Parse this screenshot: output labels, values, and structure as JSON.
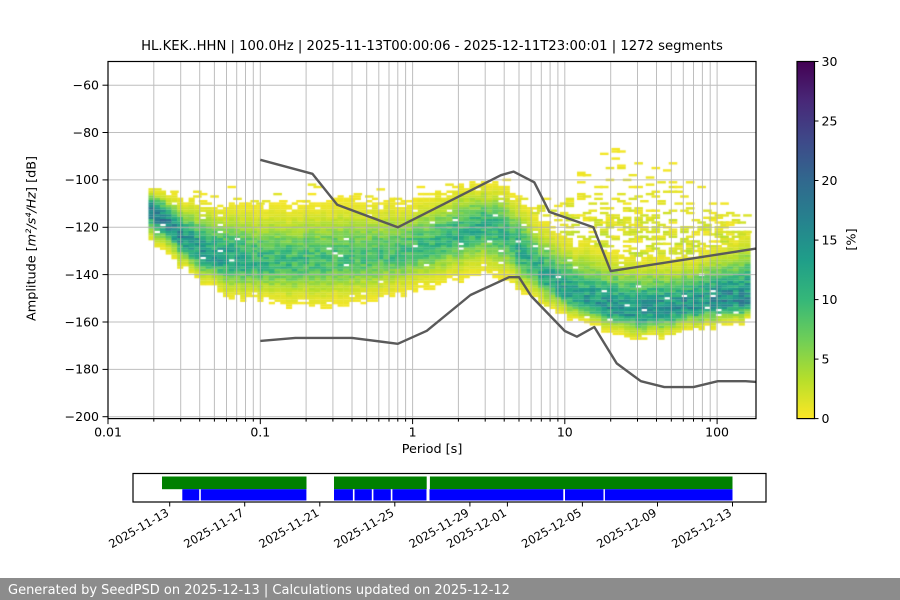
{
  "footer": {
    "text": "Generated by SeedPSD on 2025-12-13 | Calculations updated on 2025-12-12"
  },
  "colors": {
    "grid": "#b3b3b3",
    "noise_model_line": "#5a5a5a",
    "footer_background": "#8c8c8c",
    "axis": "#000000",
    "timeline_green": "#008000",
    "timeline_blue": "#0000ff"
  },
  "chart_data": {
    "type": "heatmap",
    "subtype": "ppsd-probabilistic-power-spectral-density",
    "title": "HL.KEK..HHN | 100.0Hz | 2025-11-13T00:00:06 - 2025-12-11T23:00:01 | 1272 segments",
    "header": {
      "station": "HL.KEK..HHN",
      "sampling_rate": "100.0Hz",
      "start": "2025-11-13T00:00:06",
      "end": "2025-12-11T23:00:01",
      "segments": "1272 segments"
    },
    "xlabel": "Period [s]",
    "ylabel": "Amplitude [m²/s⁴/Hz] [dB]",
    "ylabel_parts": {
      "prefix": "Amplitude [",
      "math": "m²/s⁴/Hz",
      "suffix": "] [dB]"
    },
    "xscale": "log",
    "xlim": [
      0.01,
      180
    ],
    "ylim": [
      -201,
      -50
    ],
    "grid": true,
    "x_ticks": {
      "values": [
        0.01,
        0.1,
        1,
        10,
        100
      ],
      "labels": [
        "0.01",
        "0.1",
        "1",
        "10",
        "100"
      ]
    },
    "y_ticks": {
      "values": [
        -60,
        -80,
        -100,
        -120,
        -140,
        -160,
        -180,
        -200
      ],
      "labels": [
        "−60",
        "−80",
        "−100",
        "−120",
        "−140",
        "−160",
        "−180",
        "−200"
      ]
    },
    "colorbar": {
      "label": "[%]",
      "min": 0,
      "max": 30,
      "ticks": [
        0,
        5,
        10,
        15,
        20,
        25,
        30
      ],
      "colormap": "viridis_r",
      "colors_low_to_high_pct": [
        "#fde725",
        "#b5de2b",
        "#6ece58",
        "#35b779",
        "#1f9e89",
        "#26828e",
        "#31688e",
        "#3e4989",
        "#482878",
        "#440154"
      ]
    },
    "density": {
      "description": "PPSD 2-D histogram: probability [%] of PSD amplitude vs period",
      "period_step_octaves": 0.125,
      "db_bin_width": 1,
      "period_range": [
        0.0185,
        180
      ],
      "periods": [
        0.0185,
        0.024,
        0.031,
        0.042,
        0.06,
        0.09,
        0.14,
        0.22,
        0.35,
        0.55,
        0.85,
        1.3,
        2.0,
        2.9,
        4.0,
        5.0,
        6.5,
        8.5,
        11,
        15,
        21,
        30,
        45,
        70,
        110,
        180
      ],
      "mode_db": [
        -111,
        -117,
        -125,
        -131,
        -133.5,
        -134.5,
        -134.5,
        -134,
        -133,
        -132.5,
        -131,
        -127.5,
        -122,
        -119.5,
        -122,
        -129,
        -137,
        -144,
        -149,
        -152.5,
        -154.5,
        -155.5,
        -154.5,
        -153,
        -151.5,
        -151
      ],
      "top_db": [
        -104,
        -106,
        -108,
        -110,
        -110.5,
        -111,
        -110.5,
        -109.5,
        -108,
        -108.5,
        -109,
        -106.5,
        -103,
        -101,
        -102,
        -108,
        -115,
        -121,
        -125,
        -128,
        -130.5,
        -132.5,
        -133,
        -131.5,
        -127,
        -121
      ],
      "bottom_db": [
        -124,
        -131,
        -137,
        -143,
        -148,
        -151,
        -152.5,
        -153.5,
        -152.5,
        -150.5,
        -148,
        -145.5,
        -141.5,
        -138.5,
        -141,
        -146,
        -151,
        -155,
        -158,
        -161.5,
        -164.5,
        -166.5,
        -165.5,
        -163,
        -161,
        -159
      ],
      "peak_pct": [
        19,
        17,
        15,
        14,
        13,
        11,
        10,
        9.5,
        9,
        9,
        9.5,
        10,
        11,
        11,
        11,
        11.5,
        12,
        12.5,
        13,
        14,
        15,
        15,
        15,
        15,
        15.5,
        15.5
      ]
    },
    "speckle_clouds": [
      {
        "name": "short-period-outliers",
        "p0": 0.0185,
        "p1": 1.0,
        "base": 0.18,
        "falloff": 2.0,
        "kind": "weak",
        "top": [
          [
            0.0185,
            -102
          ],
          [
            0.05,
            -104
          ],
          [
            0.1,
            -101
          ],
          [
            0.25,
            -101
          ],
          [
            0.6,
            -103
          ],
          [
            1.0,
            -101
          ]
        ]
      },
      {
        "name": "microseism-outliers",
        "p0": 1.0,
        "p1": 5.5,
        "base": 0.15,
        "falloff": 2.0,
        "kind": "weak",
        "top": [
          [
            1.0,
            -101
          ],
          [
            2.0,
            -98
          ],
          [
            3.0,
            -98
          ],
          [
            4.5,
            -99
          ],
          [
            5.5,
            -103
          ]
        ]
      },
      {
        "name": "long-period-outliers",
        "p0": 5.5,
        "p1": 180,
        "base": 0.5,
        "falloff": 1.3,
        "kind": "strong",
        "top": [
          [
            5.5,
            -112
          ],
          [
            8,
            -106
          ],
          [
            12,
            -95
          ],
          [
            18,
            -86
          ],
          [
            25,
            -84
          ],
          [
            35,
            -87
          ],
          [
            50,
            -92
          ],
          [
            80,
            -99
          ],
          [
            120,
            -106
          ],
          [
            180,
            -110
          ]
        ]
      }
    ],
    "noise_models": {
      "high": {
        "name": "NHNM",
        "points": [
          [
            0.1,
            -91.5
          ],
          [
            0.22,
            -97.4
          ],
          [
            0.32,
            -110.5
          ],
          [
            0.8,
            -120.0
          ],
          [
            3.8,
            -98.0
          ],
          [
            4.6,
            -96.5
          ],
          [
            6.3,
            -101.0
          ],
          [
            7.9,
            -113.5
          ],
          [
            15.4,
            -120.0
          ],
          [
            20.0,
            -138.5
          ],
          [
            180.0,
            -129.0
          ]
        ]
      },
      "low": {
        "name": "NLNM",
        "points": [
          [
            0.1,
            -168.0
          ],
          [
            0.17,
            -166.7
          ],
          [
            0.4,
            -166.7
          ],
          [
            0.8,
            -169.2
          ],
          [
            1.24,
            -163.7
          ],
          [
            2.4,
            -148.6
          ],
          [
            4.3,
            -141.1
          ],
          [
            5.0,
            -141.1
          ],
          [
            6.0,
            -149.0
          ],
          [
            10.0,
            -163.8
          ],
          [
            12.0,
            -166.2
          ],
          [
            15.6,
            -162.1
          ],
          [
            21.9,
            -177.5
          ],
          [
            31.6,
            -185.0
          ],
          [
            45.0,
            -187.5
          ],
          [
            70.0,
            -187.5
          ],
          [
            101.0,
            -185.0
          ],
          [
            154.0,
            -185.0
          ],
          [
            180.0,
            -185.3
          ]
        ]
      }
    },
    "timeline": {
      "description": "data / PSD coverage bars, days since 2025-11-13T00:00",
      "tick_labels": [
        "2025-11-13",
        "2025-11-17",
        "2025-11-21",
        "2025-11-25",
        "2025-11-29",
        "2025-12-01",
        "2025-12-05",
        "2025-12-09",
        "2025-12-13"
      ],
      "tick_day_offsets": [
        0,
        4,
        8,
        12,
        16,
        18,
        22,
        26,
        30
      ],
      "rows": [
        {
          "name": "data-coverage",
          "color": "#008000",
          "segments_days": [
            [
              -0.41,
              7.29
            ],
            [
              8.76,
              13.7
            ],
            [
              13.87,
              30.0
            ]
          ]
        },
        {
          "name": "psd-coverage",
          "color": "#0000ff",
          "segments_days": [
            [
              0.67,
              1.57
            ],
            [
              1.66,
              7.29
            ],
            [
              8.76,
              9.77
            ],
            [
              9.85,
              10.77
            ],
            [
              10.86,
              11.79
            ],
            [
              11.87,
              13.69
            ],
            [
              13.85,
              20.98
            ],
            [
              21.07,
              23.12
            ],
            [
              23.2,
              30.0
            ]
          ]
        }
      ]
    }
  }
}
